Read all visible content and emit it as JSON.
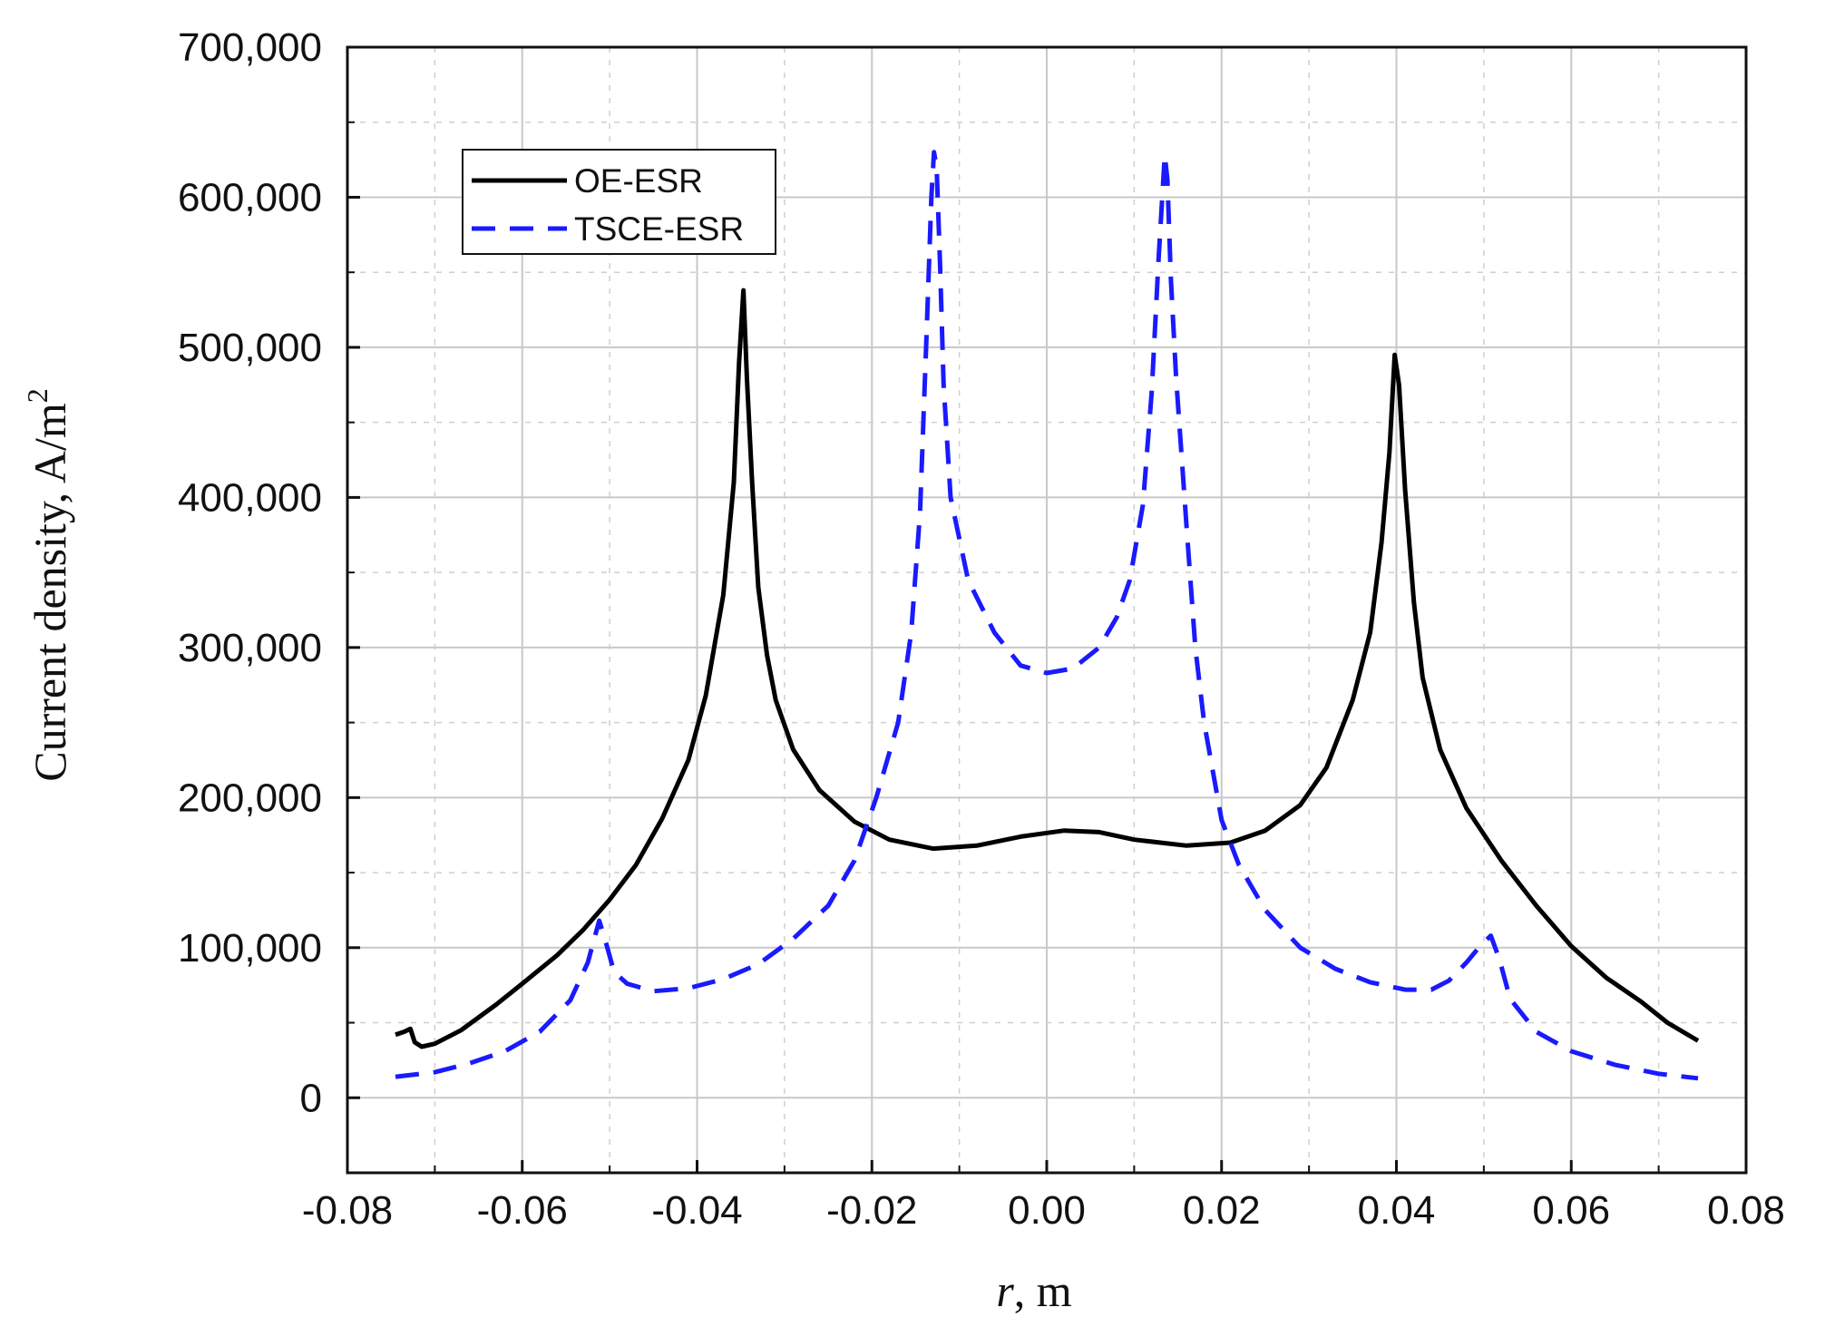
{
  "chart_data": {
    "type": "line",
    "xlabel_italic": "r",
    "xlabel_rest": ", m",
    "ylabel_text": "Current density, A/m",
    "ylabel_sup": "2",
    "xlim": [
      -0.08,
      0.08
    ],
    "ylim": [
      -50000,
      700000
    ],
    "x_ticks": [
      -0.08,
      -0.06,
      -0.04,
      -0.02,
      0.0,
      0.02,
      0.04,
      0.06,
      0.08
    ],
    "x_tick_labels": [
      "-0.08",
      "-0.06",
      "-0.04",
      "-0.02",
      "0.00",
      "0.02",
      "0.04",
      "0.06",
      "0.08"
    ],
    "x_minor_ticks": [
      -0.07,
      -0.05,
      -0.03,
      -0.01,
      0.01,
      0.03,
      0.05,
      0.07
    ],
    "y_ticks": [
      0,
      100000,
      200000,
      300000,
      400000,
      500000,
      600000,
      700000
    ],
    "y_tick_labels": [
      "0",
      "100,000",
      "200,000",
      "300,000",
      "400,000",
      "500,000",
      "600,000",
      "700,000"
    ],
    "y_minor_ticks": [
      -50000,
      50000,
      150000,
      250000,
      350000,
      450000,
      550000,
      650000
    ],
    "grid": "on",
    "legend_position": "top-left",
    "series": [
      {
        "name": "OE-ESR",
        "color": "#000000",
        "style": "solid",
        "points": [
          [
            -0.0745,
            42000
          ],
          [
            -0.0735,
            44000
          ],
          [
            -0.0728,
            46000
          ],
          [
            -0.0723,
            37000
          ],
          [
            -0.0715,
            34000
          ],
          [
            -0.07,
            36000
          ],
          [
            -0.067,
            45000
          ],
          [
            -0.063,
            62000
          ],
          [
            -0.06,
            76000
          ],
          [
            -0.056,
            95000
          ],
          [
            -0.053,
            112000
          ],
          [
            -0.05,
            132000
          ],
          [
            -0.047,
            155000
          ],
          [
            -0.044,
            186000
          ],
          [
            -0.041,
            225000
          ],
          [
            -0.039,
            268000
          ],
          [
            -0.037,
            335000
          ],
          [
            -0.0358,
            410000
          ],
          [
            -0.0352,
            490000
          ],
          [
            -0.0347,
            538000
          ],
          [
            -0.0343,
            480000
          ],
          [
            -0.0337,
            410000
          ],
          [
            -0.033,
            340000
          ],
          [
            -0.032,
            295000
          ],
          [
            -0.031,
            265000
          ],
          [
            -0.029,
            232000
          ],
          [
            -0.026,
            205000
          ],
          [
            -0.022,
            184000
          ],
          [
            -0.018,
            172000
          ],
          [
            -0.013,
            166000
          ],
          [
            -0.008,
            168000
          ],
          [
            -0.003,
            174000
          ],
          [
            0.002,
            178000
          ],
          [
            0.006,
            177000
          ],
          [
            0.01,
            172000
          ],
          [
            0.016,
            168000
          ],
          [
            0.021,
            170000
          ],
          [
            0.025,
            178000
          ],
          [
            0.029,
            195000
          ],
          [
            0.032,
            220000
          ],
          [
            0.035,
            265000
          ],
          [
            0.037,
            310000
          ],
          [
            0.0383,
            370000
          ],
          [
            0.0392,
            430000
          ],
          [
            0.0398,
            495000
          ],
          [
            0.0403,
            475000
          ],
          [
            0.041,
            405000
          ],
          [
            0.042,
            330000
          ],
          [
            0.043,
            280000
          ],
          [
            0.045,
            232000
          ],
          [
            0.048,
            193000
          ],
          [
            0.052,
            158000
          ],
          [
            0.056,
            128000
          ],
          [
            0.06,
            101000
          ],
          [
            0.064,
            80000
          ],
          [
            0.068,
            64000
          ],
          [
            0.071,
            50000
          ],
          [
            0.0745,
            38000
          ]
        ]
      },
      {
        "name": "TSCE-ESR",
        "color": "#1a1aff",
        "style": "dashed",
        "points": [
          [
            -0.0745,
            14000
          ],
          [
            -0.07,
            17000
          ],
          [
            -0.066,
            23000
          ],
          [
            -0.062,
            31000
          ],
          [
            -0.058,
            44000
          ],
          [
            -0.0545,
            65000
          ],
          [
            -0.0525,
            90000
          ],
          [
            -0.0512,
            118000
          ],
          [
            -0.0505,
            105000
          ],
          [
            -0.0495,
            84000
          ],
          [
            -0.048,
            76000
          ],
          [
            -0.045,
            71000
          ],
          [
            -0.041,
            73000
          ],
          [
            -0.037,
            79000
          ],
          [
            -0.033,
            89000
          ],
          [
            -0.029,
            106000
          ],
          [
            -0.025,
            128000
          ],
          [
            -0.022,
            158000
          ],
          [
            -0.0195,
            200000
          ],
          [
            -0.017,
            250000
          ],
          [
            -0.0155,
            310000
          ],
          [
            -0.0145,
            390000
          ],
          [
            -0.0138,
            500000
          ],
          [
            -0.0132,
            600000
          ],
          [
            -0.0129,
            630000
          ],
          [
            -0.0126,
            620000
          ],
          [
            -0.0122,
            555000
          ],
          [
            -0.0118,
            475000
          ],
          [
            -0.011,
            400000
          ],
          [
            -0.009,
            345000
          ],
          [
            -0.006,
            310000
          ],
          [
            -0.003,
            288000
          ],
          [
            0.0,
            283000
          ],
          [
            0.003,
            286000
          ],
          [
            0.006,
            300000
          ],
          [
            0.008,
            320000
          ],
          [
            0.0095,
            345000
          ],
          [
            0.011,
            395000
          ],
          [
            0.012,
            470000
          ],
          [
            0.0128,
            560000
          ],
          [
            0.0135,
            628000
          ],
          [
            0.0138,
            612000
          ],
          [
            0.0142,
            545000
          ],
          [
            0.0148,
            480000
          ],
          [
            0.016,
            380000
          ],
          [
            0.017,
            300000
          ],
          [
            0.018,
            250000
          ],
          [
            0.02,
            185000
          ],
          [
            0.022,
            155000
          ],
          [
            0.025,
            125000
          ],
          [
            0.029,
            100000
          ],
          [
            0.033,
            86000
          ],
          [
            0.037,
            77000
          ],
          [
            0.041,
            72000
          ],
          [
            0.044,
            72000
          ],
          [
            0.046,
            78000
          ],
          [
            0.048,
            90000
          ],
          [
            0.0497,
            102000
          ],
          [
            0.0508,
            108000
          ],
          [
            0.0518,
            92000
          ],
          [
            0.053,
            66000
          ],
          [
            0.056,
            44000
          ],
          [
            0.06,
            31000
          ],
          [
            0.065,
            22000
          ],
          [
            0.07,
            16000
          ],
          [
            0.0745,
            13000
          ]
        ]
      }
    ]
  }
}
